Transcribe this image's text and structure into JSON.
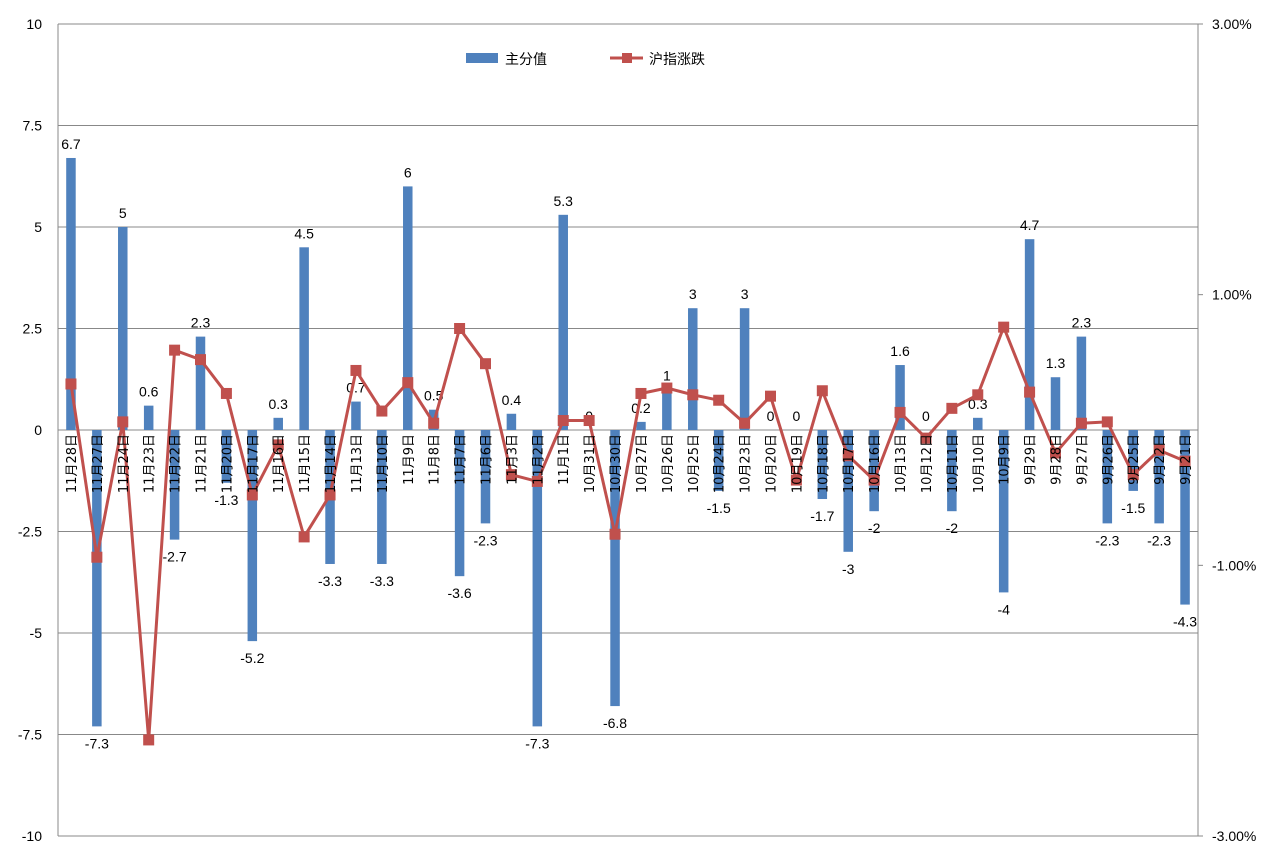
{
  "chart_data": {
    "type": "bar+line",
    "categories": [
      "11月28日",
      "11月27日",
      "11月24日",
      "11月23日",
      "11月22日",
      "11月21日",
      "11月20日",
      "11月17日",
      "11月16日",
      "11月15日",
      "11月14日",
      "11月13日",
      "11月10日",
      "11月9日",
      "11月8日",
      "11月7日",
      "11月6日",
      "11月3日",
      "11月2日",
      "11月1日",
      "10月31日",
      "10月30日",
      "10月27日",
      "10月26日",
      "10月25日",
      "10月24日",
      "10月23日",
      "10月20日",
      "10月19日",
      "10月18日",
      "10月17日",
      "10月16日",
      "10月13日",
      "10月12日",
      "10月11日",
      "10月10日",
      "10月9日",
      "9月29日",
      "9月28日",
      "9月27日",
      "9月26日",
      "9月25日",
      "9月22日",
      "9月21日"
    ],
    "series": [
      {
        "name": "主分值",
        "type": "bar",
        "axis": "left",
        "color": "#4F81BD",
        "values": [
          6.7,
          -7.3,
          5,
          0.6,
          -2.7,
          2.3,
          -1.3,
          -5.2,
          0.3,
          4.5,
          -3.3,
          0.7,
          -3.3,
          6,
          0.5,
          -3.6,
          -2.3,
          0.4,
          -7.3,
          5.3,
          0,
          -6.8,
          0.2,
          1,
          3,
          -1.5,
          3,
          0,
          0,
          -1.7,
          -3,
          -2,
          1.6,
          0,
          -2,
          0.3,
          -4,
          4.7,
          1.3,
          2.3,
          -2.3,
          -1.5,
          -2.3,
          -4.3
        ],
        "labels": [
          "6.7",
          "-7.3",
          "5",
          "0.6",
          "-2.7",
          "2.3",
          "-1.3",
          "-5.2",
          "0.3",
          "4.5",
          "-3.3",
          "0.7",
          "-3.3",
          "6",
          "0.5",
          "-3.6",
          "-2.3",
          "0.4",
          "-7.3",
          "5.3",
          "0",
          "-6.8",
          "0.2",
          "1",
          "3",
          "-1.5",
          "3",
          "0",
          "0",
          "-1.7",
          "-3",
          "-2",
          "1.6",
          "0",
          "-2",
          "0.3",
          "-4",
          "4.7",
          "1.3",
          "2.3",
          "-2.3",
          "-1.5",
          "-2.3",
          "-4.3"
        ]
      },
      {
        "name": "沪指涨跌",
        "type": "line",
        "axis": "right",
        "color": "#C0504D",
        "values": [
          0.34,
          -0.94,
          0.06,
          -2.29,
          0.59,
          0.52,
          0.27,
          -0.48,
          -0.11,
          -0.79,
          -0.48,
          0.44,
          0.14,
          0.35,
          0.05,
          0.75,
          0.49,
          -0.33,
          -0.38,
          0.07,
          0.07,
          -0.77,
          0.27,
          0.31,
          0.26,
          0.22,
          0.05,
          0.25,
          -0.37,
          0.29,
          -0.19,
          -0.37,
          0.13,
          -0.06,
          0.16,
          0.26,
          0.76,
          0.28,
          -0.17,
          0.05,
          0.06,
          -0.33,
          -0.15,
          -0.23
        ]
      }
    ],
    "y_left": {
      "min": -10,
      "max": 10,
      "ticks": [
        "10",
        "7.5",
        "5",
        "2.5",
        "0",
        "-2.5",
        "-5",
        "-7.5",
        "-10"
      ]
    },
    "y_right": {
      "min": -3,
      "max": 3,
      "ticks": [
        "3.00%",
        "1.00%",
        "-1.00%",
        "-3.00%"
      ]
    },
    "grid": true,
    "legend_position": "top-center",
    "xlabel": "",
    "ylabel": "",
    "title": ""
  }
}
